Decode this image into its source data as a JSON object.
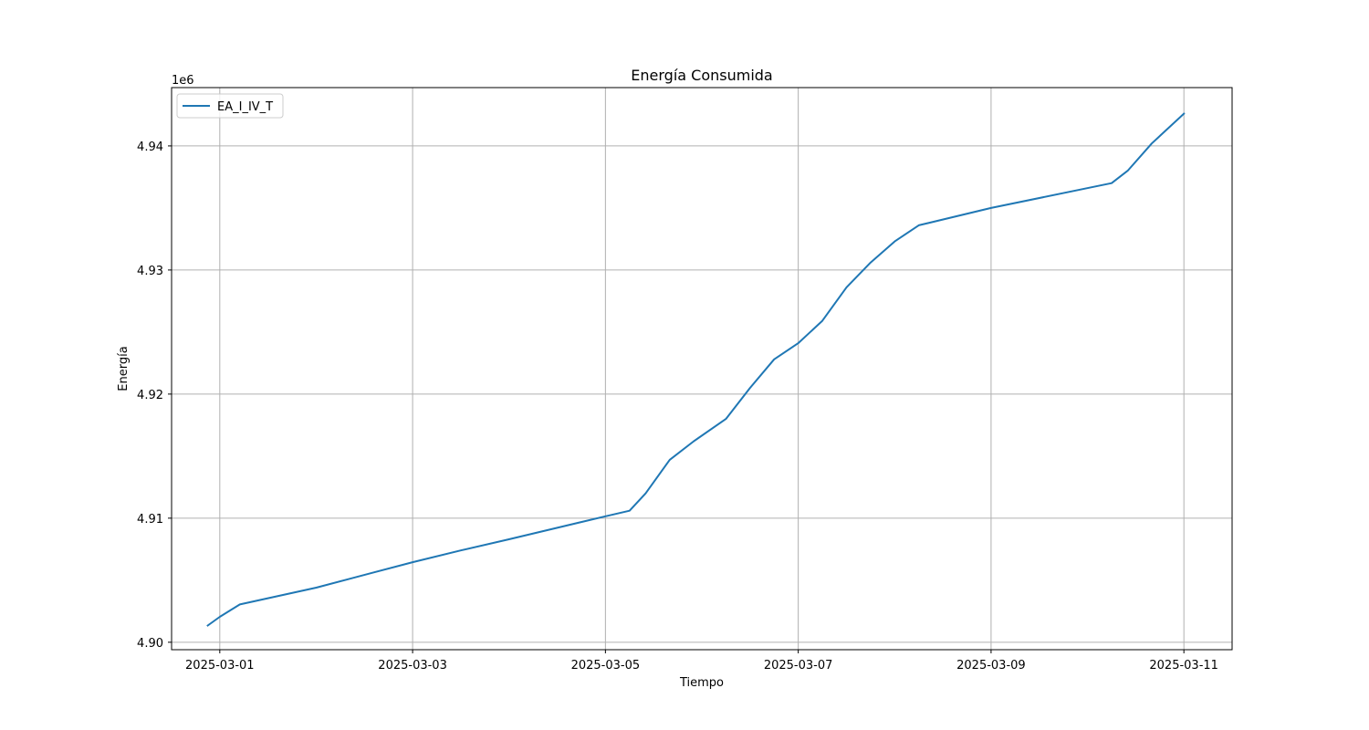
{
  "chart_data": {
    "type": "line",
    "title": "Energía Consumida",
    "xlabel": "Tiempo",
    "ylabel": "Energía",
    "y_offset_label": "1e6",
    "xlim": [
      "2025-02-28T12:00",
      "2025-03-11T12:00"
    ],
    "ylim": [
      4899400,
      4944700
    ],
    "x_ticks": [
      "2025-03-01",
      "2025-03-03",
      "2025-03-05",
      "2025-03-07",
      "2025-03-09",
      "2025-03-11"
    ],
    "y_ticks": [
      4900000,
      4910000,
      4920000,
      4930000,
      4940000
    ],
    "y_tick_labels": [
      "4.90",
      "4.91",
      "4.92",
      "4.93",
      "4.94"
    ],
    "grid": true,
    "legend_position": "top-left",
    "series": [
      {
        "name": "EA_I_IV_T",
        "color": "#1f77b4",
        "points": [
          {
            "x": "2025-02-28T21:00",
            "y": 4901350
          },
          {
            "x": "2025-03-01T00:00",
            "y": 4902050
          },
          {
            "x": "2025-03-01T05:00",
            "y": 4903050
          },
          {
            "x": "2025-03-02T00:00",
            "y": 4904400
          },
          {
            "x": "2025-03-02T14:00",
            "y": 4905600
          },
          {
            "x": "2025-03-03T00:00",
            "y": 4906450
          },
          {
            "x": "2025-03-03T12:00",
            "y": 4907400
          },
          {
            "x": "2025-03-04T00:00",
            "y": 4908300
          },
          {
            "x": "2025-03-05T00:00",
            "y": 4910150
          },
          {
            "x": "2025-03-05T06:00",
            "y": 4910600
          },
          {
            "x": "2025-03-05T10:00",
            "y": 4912000
          },
          {
            "x": "2025-03-05T16:00",
            "y": 4914700
          },
          {
            "x": "2025-03-05T22:00",
            "y": 4916200
          },
          {
            "x": "2025-03-06T06:00",
            "y": 4918000
          },
          {
            "x": "2025-03-06T12:00",
            "y": 4920500
          },
          {
            "x": "2025-03-06T18:00",
            "y": 4922800
          },
          {
            "x": "2025-03-07T00:00",
            "y": 4924100
          },
          {
            "x": "2025-03-07T06:00",
            "y": 4925900
          },
          {
            "x": "2025-03-07T12:00",
            "y": 4928600
          },
          {
            "x": "2025-03-07T18:00",
            "y": 4930600
          },
          {
            "x": "2025-03-08T00:00",
            "y": 4932300
          },
          {
            "x": "2025-03-08T06:00",
            "y": 4933600
          },
          {
            "x": "2025-03-09T00:00",
            "y": 4935000
          },
          {
            "x": "2025-03-10T06:00",
            "y": 4937000
          },
          {
            "x": "2025-03-10T10:00",
            "y": 4938000
          },
          {
            "x": "2025-03-10T16:00",
            "y": 4940200
          },
          {
            "x": "2025-03-11T00:00",
            "y": 4942600
          }
        ]
      }
    ]
  }
}
